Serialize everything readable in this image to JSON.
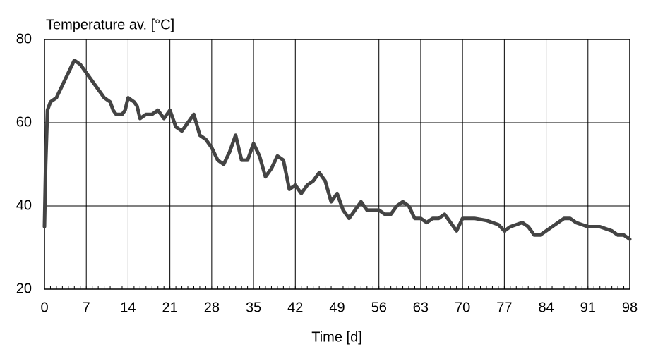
{
  "chart_data": {
    "type": "line",
    "title": "Temperature av. [°C]",
    "x_label": "Time [d]",
    "x": [
      0,
      0.2,
      0.5,
      1,
      2,
      3,
      4,
      5,
      6,
      7,
      8,
      9,
      10,
      11,
      11.5,
      12,
      13,
      13.5,
      14,
      15,
      15.5,
      16,
      17,
      18,
      19,
      20,
      21,
      22,
      23,
      24,
      25,
      26,
      27,
      28,
      29,
      30,
      31,
      32,
      33,
      34,
      35,
      36,
      37,
      38,
      39,
      40,
      41,
      42,
      43,
      44,
      45,
      46,
      47,
      48,
      49,
      50,
      51,
      52,
      53,
      54,
      55,
      56,
      57,
      58,
      59,
      60,
      61,
      62,
      63,
      64,
      65,
      66,
      67,
      68,
      69,
      70,
      72,
      74,
      76,
      77,
      78,
      79,
      80,
      81,
      82,
      83,
      84,
      85,
      86,
      87,
      88,
      89,
      90,
      91,
      93,
      95,
      96,
      97,
      98
    ],
    "series": [
      {
        "name": "Temperature av.",
        "color": "#444444",
        "values": [
          35,
          50,
          63,
          65,
          66,
          69,
          72,
          75,
          74,
          72,
          70,
          68,
          66,
          65,
          63,
          62,
          62,
          63,
          66,
          65,
          64,
          61,
          62,
          62,
          63,
          61,
          63,
          59,
          58,
          60,
          62,
          57,
          56,
          54,
          51,
          50,
          53,
          57,
          51,
          51,
          55,
          52,
          47,
          49,
          52,
          51,
          44,
          45,
          43,
          45,
          46,
          48,
          46,
          41,
          43,
          39,
          37,
          39,
          41,
          39,
          39,
          39,
          38,
          38,
          40,
          41,
          40,
          37,
          37,
          36,
          37,
          37,
          38,
          36,
          34,
          37,
          37,
          36.5,
          35.5,
          34,
          35,
          35.5,
          36,
          35,
          33,
          33,
          34,
          35,
          36,
          37,
          37,
          36,
          35.5,
          35,
          35,
          34,
          33,
          33,
          32
        ]
      }
    ],
    "xlim": [
      0,
      98
    ],
    "xticks": [
      0,
      7,
      14,
      21,
      28,
      35,
      42,
      49,
      56,
      63,
      70,
      77,
      84,
      91,
      98
    ],
    "ylim": [
      20,
      80
    ],
    "yticks": [
      20,
      40,
      60,
      80
    ],
    "grid": true
  }
}
